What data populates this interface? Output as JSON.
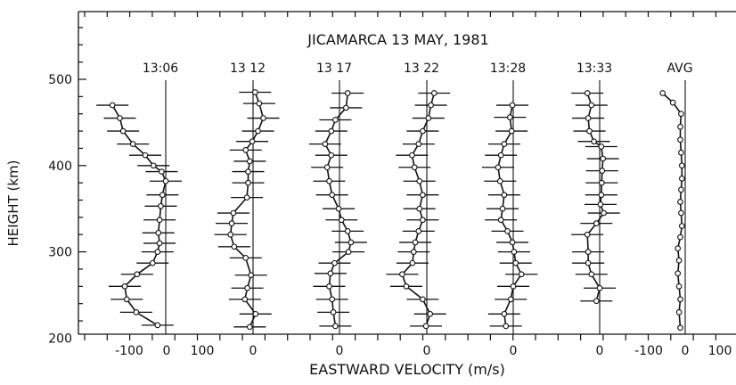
{
  "chart_data": {
    "type": "line",
    "title": "JICAMARCA 13 MAY, 1981",
    "xlabel": "EASTWARD VELOCITY (m/s)",
    "ylabel": "HEIGHT (km)",
    "ylim": [
      200,
      570
    ],
    "y_ticks": [
      "200",
      "300",
      "400",
      "500"
    ],
    "x_tick_labels": [
      "-100",
      "0",
      "100",
      "0",
      "0",
      "0",
      "0",
      "0",
      "-100",
      "0",
      "100"
    ],
    "grid": false,
    "legend": "none",
    "series": [
      {
        "name": "13:06",
        "points": [
          [
            -130,
            470
          ],
          [
            -112,
            455
          ],
          [
            -104,
            440
          ],
          [
            -80,
            425
          ],
          [
            -50,
            412
          ],
          [
            -30,
            400
          ],
          [
            -10,
            393
          ],
          [
            0,
            382
          ],
          [
            -8,
            366
          ],
          [
            -12,
            353
          ],
          [
            -15,
            337
          ],
          [
            -18,
            322
          ],
          [
            -15,
            310
          ],
          [
            -20,
            300
          ],
          [
            -32,
            287
          ],
          [
            -70,
            274
          ],
          [
            -100,
            260
          ],
          [
            -95,
            245
          ],
          [
            -72,
            230
          ],
          [
            -20,
            215
          ]
        ]
      },
      {
        "name": "13 12",
        "points": [
          [
            5,
            485
          ],
          [
            15,
            472
          ],
          [
            25,
            455
          ],
          [
            12,
            440
          ],
          [
            -2,
            428
          ],
          [
            -18,
            418
          ],
          [
            -8,
            405
          ],
          [
            -12,
            393
          ],
          [
            -12,
            380
          ],
          [
            -15,
            363
          ],
          [
            -48,
            345
          ],
          [
            -52,
            333
          ],
          [
            -55,
            320
          ],
          [
            -46,
            306
          ],
          [
            -18,
            293
          ],
          [
            -5,
            273
          ],
          [
            -14,
            258
          ],
          [
            -20,
            245
          ],
          [
            6,
            228
          ],
          [
            -8,
            213
          ]
        ]
      },
      {
        "name": "13 17",
        "points": [
          [
            20,
            484
          ],
          [
            16,
            467
          ],
          [
            -10,
            453
          ],
          [
            -20,
            440
          ],
          [
            -35,
            425
          ],
          [
            -20,
            412
          ],
          [
            -30,
            398
          ],
          [
            -25,
            382
          ],
          [
            -18,
            366
          ],
          [
            -2,
            350
          ],
          [
            5,
            337
          ],
          [
            20,
            324
          ],
          [
            28,
            311
          ],
          [
            22,
            300
          ],
          [
            -12,
            287
          ],
          [
            -22,
            275
          ],
          [
            -25,
            260
          ],
          [
            -18,
            245
          ],
          [
            -15,
            230
          ],
          [
            -10,
            214
          ]
        ]
      },
      {
        "name": "13 22",
        "points": [
          [
            18,
            484
          ],
          [
            10,
            470
          ],
          [
            4,
            455
          ],
          [
            -10,
            440
          ],
          [
            -20,
            425
          ],
          [
            -36,
            412
          ],
          [
            -30,
            398
          ],
          [
            -18,
            382
          ],
          [
            -10,
            366
          ],
          [
            -18,
            350
          ],
          [
            -10,
            337
          ],
          [
            -20,
            324
          ],
          [
            -28,
            311
          ],
          [
            -32,
            300
          ],
          [
            -35,
            287
          ],
          [
            -60,
            274
          ],
          [
            -50,
            260
          ],
          [
            -10,
            245
          ],
          [
            8,
            228
          ],
          [
            -2,
            214
          ]
        ]
      },
      {
        "name": "13:28",
        "points": [
          [
            -2,
            470
          ],
          [
            -8,
            456
          ],
          [
            -4,
            440
          ],
          [
            -22,
            425
          ],
          [
            -30,
            412
          ],
          [
            -37,
            398
          ],
          [
            -32,
            382
          ],
          [
            -22,
            366
          ],
          [
            -26,
            350
          ],
          [
            -30,
            337
          ],
          [
            -14,
            324
          ],
          [
            -2,
            311
          ],
          [
            2,
            300
          ],
          [
            6,
            287
          ],
          [
            20,
            274
          ],
          [
            0,
            260
          ],
          [
            -6,
            245
          ],
          [
            -22,
            228
          ],
          [
            -18,
            214
          ]
        ]
      },
      {
        "name": "13:33",
        "points": [
          [
            -30,
            484
          ],
          [
            -20,
            470
          ],
          [
            -28,
            455
          ],
          [
            -25,
            440
          ],
          [
            -14,
            428
          ],
          [
            4,
            422
          ],
          [
            8,
            408
          ],
          [
            6,
            394
          ],
          [
            5,
            380
          ],
          [
            4,
            366
          ],
          [
            2,
            355
          ],
          [
            10,
            345
          ],
          [
            -8,
            333
          ],
          [
            -30,
            320
          ],
          [
            -28,
            300
          ],
          [
            -28,
            287
          ],
          [
            -20,
            274
          ],
          [
            0,
            258
          ],
          [
            -8,
            243
          ]
        ]
      },
      {
        "name": "AVG",
        "points": [
          [
            -55,
            484
          ],
          [
            -30,
            473
          ],
          [
            -10,
            460
          ],
          [
            -12,
            445
          ],
          [
            -12,
            430
          ],
          [
            -10,
            415
          ],
          [
            -8,
            400
          ],
          [
            -8,
            385
          ],
          [
            -10,
            372
          ],
          [
            -12,
            358
          ],
          [
            -10,
            345
          ],
          [
            -8,
            330
          ],
          [
            -12,
            317
          ],
          [
            -18,
            304
          ],
          [
            -15,
            290
          ],
          [
            -18,
            275
          ],
          [
            -15,
            260
          ],
          [
            -12,
            245
          ],
          [
            -15,
            230
          ],
          [
            -12,
            212
          ]
        ]
      }
    ]
  }
}
